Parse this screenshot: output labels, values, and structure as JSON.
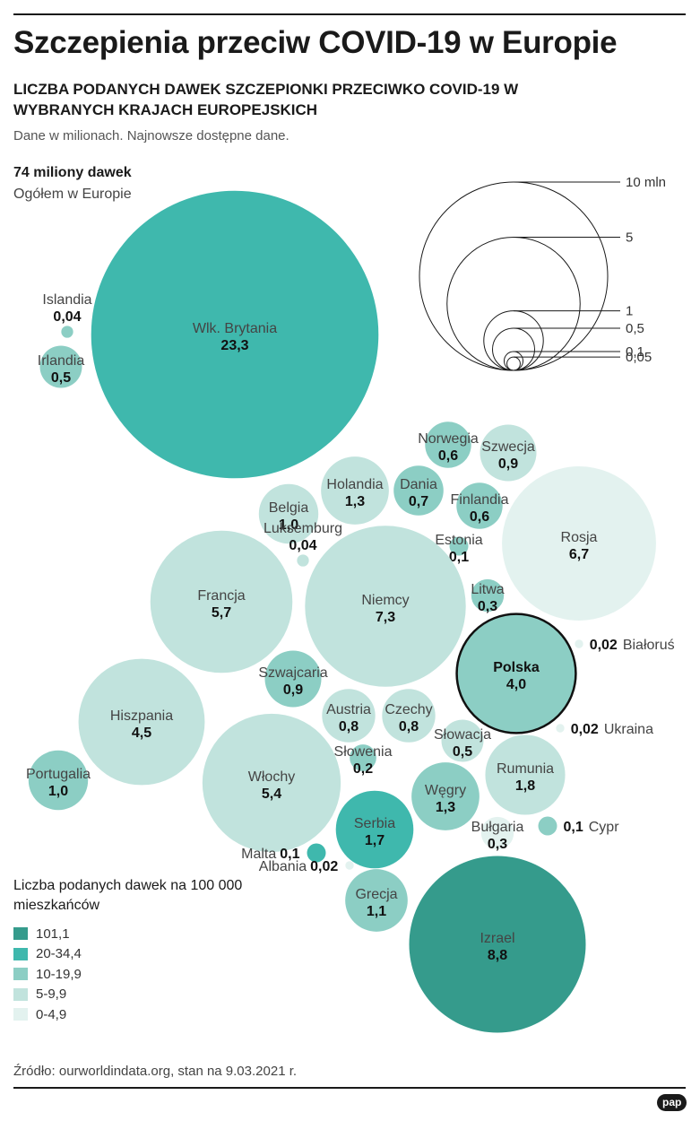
{
  "header": {
    "title": "Szczepienia przeciw COVID-19 w Europie",
    "subtitle": "LICZBA PODANYCH DAWEK SZCZEPIONKI PRZECIWKO COVID-19 W WYBRANYCH KRAJACH EUROPEJSKICH",
    "note": "Dane w milionach. Najnowsze dostępne dane."
  },
  "total": {
    "value": "74 miliony dawek",
    "label": "Ogółem w Europie"
  },
  "legend": {
    "title": "Liczba podanych dawek na 100 000 mieszkańców",
    "items": [
      {
        "label": "101,1",
        "color": "#359b8c"
      },
      {
        "label": "20-34,4",
        "color": "#3fb8ad"
      },
      {
        "label": "10-19,9",
        "color": "#8ccec4"
      },
      {
        "label": "5-9,9",
        "color": "#c1e3dd"
      },
      {
        "label": "0-4,9",
        "color": "#e3f2ef"
      }
    ]
  },
  "source": "Źródło: ourworldindata.org, stan na 9.03.2021 r.",
  "logo": "pap",
  "chart_data": {
    "type": "bubble",
    "unit": "mln dawek",
    "title": "Liczba podanych dawek szczepionki przeciwko COVID-19 w wybranych krajach europejskich",
    "size_scale": [
      {
        "value": 10,
        "label": "10 mln"
      },
      {
        "value": 5,
        "label": "5"
      },
      {
        "value": 1,
        "label": "1"
      },
      {
        "value": 0.5,
        "label": "0,5"
      },
      {
        "value": 0.1,
        "label": "0,1"
      },
      {
        "value": 0.05,
        "label": "0,05"
      }
    ],
    "countries": [
      {
        "name": "Wlk. Brytania",
        "value": 23.3,
        "label": "23,3",
        "category": "20-34,4"
      },
      {
        "name": "Islandia",
        "value": 0.04,
        "label": "0,04",
        "category": "10-19,9"
      },
      {
        "name": "Irlandia",
        "value": 0.5,
        "label": "0,5",
        "category": "10-19,9"
      },
      {
        "name": "Norwegia",
        "value": 0.6,
        "label": "0,6",
        "category": "10-19,9"
      },
      {
        "name": "Szwecja",
        "value": 0.9,
        "label": "0,9",
        "category": "5-9,9"
      },
      {
        "name": "Holandia",
        "value": 1.3,
        "label": "1,3",
        "category": "5-9,9"
      },
      {
        "name": "Dania",
        "value": 0.7,
        "label": "0,7",
        "category": "10-19,9"
      },
      {
        "name": "Finlandia",
        "value": 0.6,
        "label": "0,6",
        "category": "10-19,9"
      },
      {
        "name": "Belgia",
        "value": 1.0,
        "label": "1,0",
        "category": "5-9,9"
      },
      {
        "name": "Rosja",
        "value": 6.7,
        "label": "6,7",
        "category": "0-4,9"
      },
      {
        "name": "Estonia",
        "value": 0.1,
        "label": "0,1",
        "category": "10-19,9"
      },
      {
        "name": "Luksemburg",
        "value": 0.04,
        "label": "0,04",
        "category": "5-9,9"
      },
      {
        "name": "Francja",
        "value": 5.7,
        "label": "5,7",
        "category": "5-9,9"
      },
      {
        "name": "Niemcy",
        "value": 7.3,
        "label": "7,3",
        "category": "5-9,9"
      },
      {
        "name": "Litwa",
        "value": 0.3,
        "label": "0,3",
        "category": "10-19,9"
      },
      {
        "name": "Polska",
        "value": 4.0,
        "label": "4,0",
        "category": "10-19,9",
        "highlight": true
      },
      {
        "name": "Białoruś",
        "value": 0.02,
        "label": "0,02",
        "category": "0-4,9"
      },
      {
        "name": "Szwajcaria",
        "value": 0.9,
        "label": "0,9",
        "category": "10-19,9"
      },
      {
        "name": "Hiszpania",
        "value": 4.5,
        "label": "4,5",
        "category": "5-9,9"
      },
      {
        "name": "Austria",
        "value": 0.8,
        "label": "0,8",
        "category": "5-9,9"
      },
      {
        "name": "Czechy",
        "value": 0.8,
        "label": "0,8",
        "category": "5-9,9"
      },
      {
        "name": "Ukraina",
        "value": 0.02,
        "label": "0,02",
        "category": "0-4,9"
      },
      {
        "name": "Słowacja",
        "value": 0.5,
        "label": "0,5",
        "category": "5-9,9"
      },
      {
        "name": "Portugalia",
        "value": 1.0,
        "label": "1,0",
        "category": "10-19,9"
      },
      {
        "name": "Włochy",
        "value": 5.4,
        "label": "5,4",
        "category": "5-9,9"
      },
      {
        "name": "Słowenia",
        "value": 0.2,
        "label": "0,2",
        "category": "10-19,9"
      },
      {
        "name": "Rumunia",
        "value": 1.8,
        "label": "1,8",
        "category": "5-9,9"
      },
      {
        "name": "Węgry",
        "value": 1.3,
        "label": "1,3",
        "category": "10-19,9"
      },
      {
        "name": "Serbia",
        "value": 1.7,
        "label": "1,7",
        "category": "20-34,4"
      },
      {
        "name": "Bułgaria",
        "value": 0.3,
        "label": "0,3",
        "category": "0-4,9"
      },
      {
        "name": "Cypr",
        "value": 0.1,
        "label": "0,1",
        "category": "10-19,9"
      },
      {
        "name": "Malta",
        "value": 0.1,
        "label": "0,1",
        "category": "20-34,4"
      },
      {
        "name": "Albania",
        "value": 0.02,
        "label": "0,02",
        "category": "0-4,9"
      },
      {
        "name": "Grecja",
        "value": 1.1,
        "label": "1,1",
        "category": "10-19,9"
      },
      {
        "name": "Izrael",
        "value": 8.8,
        "label": "8,8",
        "category": "101,1"
      }
    ]
  }
}
